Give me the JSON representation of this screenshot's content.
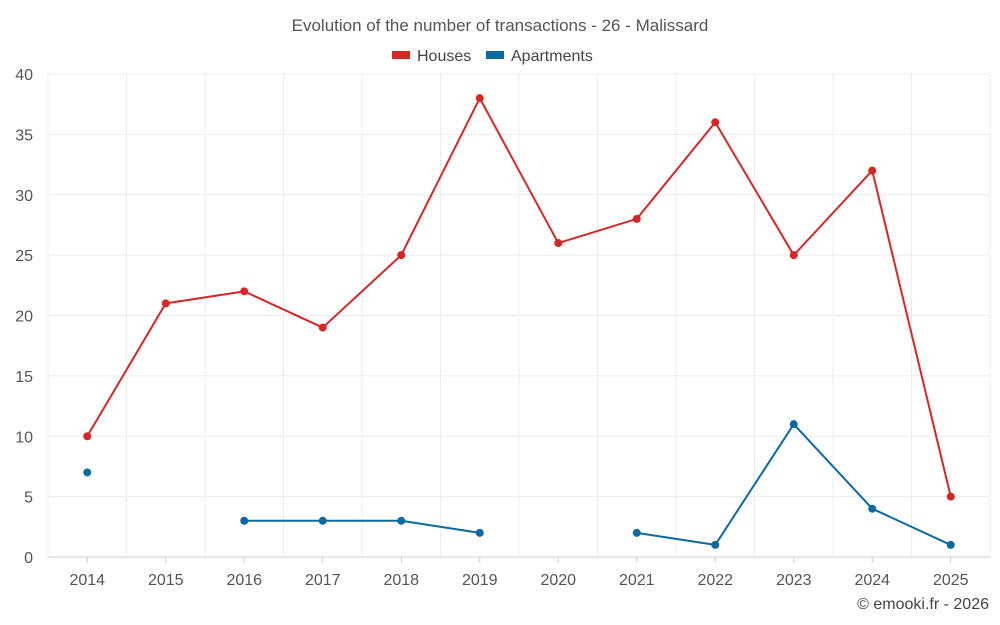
{
  "chart_data": {
    "type": "line",
    "title": "Evolution of the number of transactions - 26 - Malissard",
    "xlabel": "",
    "ylabel": "",
    "categories": [
      "2014",
      "2015",
      "2016",
      "2017",
      "2018",
      "2019",
      "2020",
      "2021",
      "2022",
      "2023",
      "2024",
      "2025"
    ],
    "ylim": [
      0,
      40
    ],
    "yticks": [
      0,
      5,
      10,
      15,
      20,
      25,
      30,
      35,
      40
    ],
    "grid": true,
    "legend_position": "top-center",
    "series": [
      {
        "name": "Houses",
        "color": "#d62728",
        "values": [
          10,
          21,
          22,
          19,
          25,
          38,
          26,
          28,
          36,
          25,
          32,
          5
        ]
      },
      {
        "name": "Apartments",
        "color": "#0d6aa0",
        "values": [
          7,
          null,
          3,
          3,
          3,
          2,
          null,
          2,
          1,
          11,
          4,
          1
        ]
      }
    ]
  },
  "credit": "© emooki.fr - 2026"
}
